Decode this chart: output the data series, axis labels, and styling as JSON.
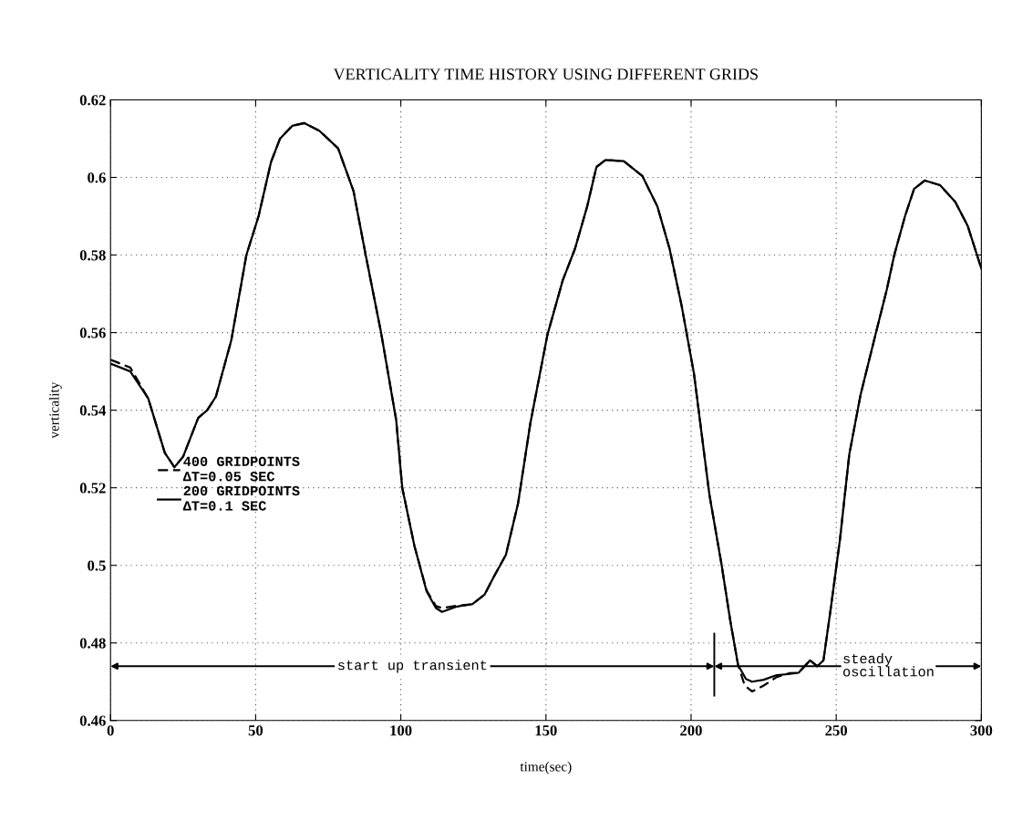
{
  "chart_data": {
    "type": "line",
    "title": "VERTICALITY TIME HISTORY USING DIFFERENT GRIDS",
    "xlabel": "time(sec)",
    "ylabel": "verticality",
    "xlim": [
      0,
      300
    ],
    "ylim": [
      0.46,
      0.62
    ],
    "xticks": [
      0,
      50,
      100,
      150,
      200,
      250,
      300
    ],
    "yticks": [
      0.46,
      0.48,
      0.5,
      0.52,
      0.54,
      0.56,
      0.58,
      0.6,
      0.62
    ],
    "grid": true,
    "legend": "left",
    "series": [
      {
        "name": "400 GRIDPOINTS\nΔT=0.05 SEC",
        "color": "#000000",
        "line_style": "dashed",
        "x": [
          0,
          6.8,
          13,
          18.7,
          22,
          25,
          30.2,
          33.3,
          36.3,
          41.6,
          46.8,
          51,
          55.3,
          58.4,
          62.6,
          66.8,
          72,
          78.4,
          83.7,
          87.9,
          93.2,
          98.4,
          100.5,
          104.7,
          108.9,
          112.1,
          114.2,
          119.4,
          124.7,
          128.9,
          132,
          136.2,
          140.4,
          144.6,
          150.5,
          155.8,
          160,
          164.2,
          167.4,
          170.5,
          176.8,
          183.2,
          188.4,
          192.6,
          196.8,
          201,
          206.3,
          210.5,
          213.6,
          216.2,
          218.5,
          221,
          225,
          229.5,
          234,
          237,
          241,
          243.5,
          245.6,
          248.2,
          251.3,
          254.5,
          258.4,
          263.7,
          267.4,
          270,
          273.7,
          276.8,
          280.5,
          285.8,
          291,
          295.3,
          300
        ],
        "values": [
          0.553,
          0.551,
          0.543,
          0.529,
          0.5253,
          0.528,
          0.538,
          0.54,
          0.5435,
          0.558,
          0.58,
          0.59,
          0.604,
          0.61,
          0.6133,
          0.614,
          0.612,
          0.6075,
          0.5965,
          0.58,
          0.56,
          0.5375,
          0.52,
          0.505,
          0.4935,
          0.4895,
          0.489,
          0.4896,
          0.49,
          0.4925,
          0.497,
          0.5027,
          0.516,
          0.5365,
          0.5594,
          0.5735,
          0.5816,
          0.5925,
          0.6027,
          0.6045,
          0.6042,
          0.6004,
          0.5925,
          0.5816,
          0.5667,
          0.5494,
          0.5183,
          0.5002,
          0.4853,
          0.4743,
          0.469,
          0.4675,
          0.469,
          0.4712,
          0.4722,
          0.4723,
          0.4755,
          0.474,
          0.4755,
          0.4893,
          0.5067,
          0.5286,
          0.544,
          0.56,
          0.571,
          0.58,
          0.59,
          0.597,
          0.5992,
          0.598,
          0.5937,
          0.5875,
          0.5765
        ]
      },
      {
        "name": "200 GRIDPOINTS\nΔT=0.1 SEC",
        "color": "#000000",
        "line_style": "solid",
        "x": [
          0,
          6.8,
          13,
          18.7,
          22,
          25,
          30.2,
          33.3,
          36.3,
          41.6,
          46.8,
          51,
          55.3,
          58.4,
          62.6,
          66.8,
          72,
          78.4,
          83.7,
          87.9,
          93.2,
          98.4,
          100.5,
          104.7,
          108.9,
          112.1,
          114.2,
          119.4,
          124.7,
          128.9,
          132,
          136.2,
          140.4,
          144.6,
          150.5,
          155.8,
          160,
          164.2,
          167.4,
          170.5,
          176.8,
          183.2,
          188.4,
          192.6,
          196.8,
          201,
          206.3,
          210.5,
          213.6,
          216.2,
          218.9,
          221,
          225,
          229.5,
          234,
          237,
          241,
          243.5,
          245.6,
          248.2,
          251.3,
          254.5,
          258.4,
          263.7,
          267.4,
          270,
          273.7,
          276.8,
          280.5,
          285.8,
          291,
          295.3,
          300
        ],
        "values": [
          0.552,
          0.55,
          0.543,
          0.529,
          0.5253,
          0.528,
          0.538,
          0.54,
          0.5435,
          0.558,
          0.58,
          0.59,
          0.604,
          0.61,
          0.6133,
          0.614,
          0.612,
          0.6075,
          0.5965,
          0.58,
          0.56,
          0.5375,
          0.52,
          0.505,
          0.4933,
          0.489,
          0.488,
          0.4894,
          0.49,
          0.4925,
          0.497,
          0.5027,
          0.516,
          0.5365,
          0.5594,
          0.5735,
          0.5816,
          0.5925,
          0.6027,
          0.6045,
          0.6042,
          0.6004,
          0.5925,
          0.5816,
          0.5667,
          0.5494,
          0.5183,
          0.5002,
          0.4853,
          0.4743,
          0.4707,
          0.47,
          0.4705,
          0.4717,
          0.472,
          0.4723,
          0.4755,
          0.474,
          0.4755,
          0.4893,
          0.5067,
          0.5286,
          0.544,
          0.56,
          0.571,
          0.58,
          0.59,
          0.597,
          0.5992,
          0.598,
          0.5937,
          0.5875,
          0.5765
        ]
      }
    ],
    "ref_lines": [
      {
        "axis": "x",
        "value": 208
      }
    ],
    "annotations": [
      "start up transient",
      "steady\noscillation"
    ]
  }
}
